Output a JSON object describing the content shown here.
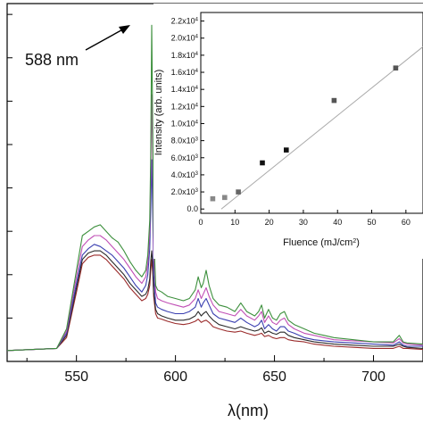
{
  "chart_data": [
    {
      "type": "line",
      "title": "",
      "xlabel": "λ(nm)",
      "ylabel": "",
      "xlim": [
        515,
        725
      ],
      "ylim": [
        0,
        16.5
      ],
      "x_ticks": [
        550,
        600,
        650,
        700
      ],
      "grid": false,
      "legend": "none",
      "annotations": [
        {
          "text": "588 nm",
          "x": 588,
          "y": 16.2
        }
      ],
      "x": [
        515,
        540,
        545,
        550,
        553,
        556,
        559,
        562,
        565,
        568,
        571,
        574,
        577,
        580,
        583,
        585,
        586,
        587,
        587.5,
        588,
        588.5,
        589,
        590,
        591,
        593,
        596,
        600,
        604,
        607,
        610,
        611.5,
        613,
        614,
        615.5,
        617,
        619,
        622,
        626,
        630,
        633,
        636,
        640,
        642,
        643.5,
        645,
        647,
        649,
        651,
        653,
        655,
        657,
        660,
        665,
        670,
        675,
        680,
        690,
        700,
        710,
        713,
        715,
        717,
        725
      ],
      "series": [
        {
          "name": "",
          "color": "#3c8f3c",
          "values": [
            0.5,
            0.6,
            1.5,
            4.2,
            5.8,
            6.0,
            6.2,
            6.3,
            6.0,
            5.7,
            5.5,
            5.1,
            4.6,
            4.2,
            3.9,
            4.2,
            4.9,
            6.5,
            9.5,
            15.5,
            11.0,
            6.0,
            3.5,
            3.3,
            3.2,
            3.0,
            2.9,
            2.8,
            2.9,
            3.3,
            3.9,
            3.4,
            3.6,
            4.2,
            3.5,
            2.9,
            2.6,
            2.5,
            2.3,
            2.7,
            2.3,
            2.1,
            2.3,
            2.6,
            2.0,
            2.4,
            2.0,
            1.9,
            2.2,
            2.3,
            1.9,
            1.7,
            1.5,
            1.3,
            1.2,
            1.1,
            1.0,
            0.9,
            0.9,
            1.2,
            0.9,
            0.85,
            0.8
          ]
        },
        {
          "name": "",
          "color": "#c04fb5",
          "values": [
            0.5,
            0.6,
            1.4,
            3.9,
            5.3,
            5.6,
            5.8,
            5.8,
            5.6,
            5.3,
            5.0,
            4.7,
            4.3,
            3.9,
            3.6,
            3.9,
            4.5,
            6.0,
            8.5,
            12.3,
            9.5,
            5.0,
            3.2,
            2.9,
            2.8,
            2.7,
            2.6,
            2.5,
            2.6,
            2.9,
            3.3,
            2.9,
            3.1,
            3.4,
            3.0,
            2.6,
            2.3,
            2.2,
            2.1,
            2.4,
            2.1,
            1.9,
            2.1,
            2.3,
            1.8,
            2.1,
            1.8,
            1.7,
            1.9,
            2.0,
            1.7,
            1.5,
            1.3,
            1.2,
            1.1,
            1.0,
            0.95,
            0.9,
            0.85,
            1.05,
            0.85,
            0.8,
            0.75
          ]
        },
        {
          "name": "",
          "color": "#3a3fb0",
          "values": [
            0.5,
            0.6,
            1.3,
            3.6,
            4.9,
            5.2,
            5.4,
            5.3,
            5.1,
            4.9,
            4.6,
            4.3,
            3.9,
            3.5,
            3.2,
            3.5,
            4.0,
            5.2,
            7.0,
            9.3,
            7.0,
            4.0,
            2.7,
            2.5,
            2.4,
            2.3,
            2.2,
            2.2,
            2.3,
            2.5,
            2.9,
            2.5,
            2.7,
            2.9,
            2.6,
            2.2,
            2.0,
            1.9,
            1.8,
            2.0,
            1.8,
            1.6,
            1.7,
            1.9,
            1.5,
            1.7,
            1.5,
            1.4,
            1.6,
            1.6,
            1.4,
            1.3,
            1.1,
            1.0,
            0.95,
            0.9,
            0.85,
            0.8,
            0.75,
            0.9,
            0.75,
            0.7,
            0.7
          ]
        },
        {
          "name": "",
          "color": "#2b2b2b",
          "values": [
            0.5,
            0.6,
            1.2,
            3.4,
            4.7,
            5.0,
            5.1,
            5.1,
            4.9,
            4.6,
            4.3,
            4.0,
            3.6,
            3.3,
            3.0,
            3.1,
            3.3,
            3.8,
            4.6,
            5.1,
            4.5,
            3.2,
            2.4,
            2.2,
            2.1,
            2.0,
            1.9,
            1.9,
            1.95,
            2.1,
            2.3,
            2.1,
            2.2,
            2.3,
            2.1,
            1.9,
            1.7,
            1.6,
            1.5,
            1.6,
            1.5,
            1.4,
            1.45,
            1.55,
            1.3,
            1.4,
            1.3,
            1.25,
            1.35,
            1.35,
            1.2,
            1.1,
            1.0,
            0.9,
            0.85,
            0.8,
            0.75,
            0.7,
            0.7,
            0.8,
            0.7,
            0.65,
            0.6
          ]
        },
        {
          "name": "",
          "color": "#9a2a2a",
          "values": [
            0.5,
            0.6,
            1.1,
            3.2,
            4.5,
            4.8,
            4.9,
            4.9,
            4.7,
            4.4,
            4.1,
            3.8,
            3.4,
            3.1,
            2.8,
            2.9,
            3.1,
            3.5,
            4.2,
            4.7,
            4.1,
            3.0,
            2.2,
            2.0,
            1.95,
            1.85,
            1.75,
            1.7,
            1.75,
            1.85,
            1.95,
            1.8,
            1.85,
            1.9,
            1.8,
            1.6,
            1.5,
            1.4,
            1.35,
            1.4,
            1.3,
            1.2,
            1.25,
            1.3,
            1.15,
            1.2,
            1.1,
            1.05,
            1.1,
            1.1,
            1.0,
            0.95,
            0.9,
            0.8,
            0.75,
            0.7,
            0.65,
            0.6,
            0.6,
            0.7,
            0.6,
            0.6,
            0.55
          ]
        }
      ]
    },
    {
      "type": "scatter",
      "title": "",
      "xlabel": "Fluence (mJ/cm",
      "xlabel_sup": "2",
      "xlabel_suffix": ")",
      "ylabel": "Intensity (arb. units)",
      "xlim": [
        0,
        65
      ],
      "ylim": [
        -500,
        23000
      ],
      "x_ticks": [
        0,
        10,
        20,
        30,
        40,
        50,
        60
      ],
      "y_ticks": [
        {
          "value": 0,
          "mantissa": "0.0",
          "exp": ""
        },
        {
          "value": 2000,
          "mantissa": "2.0x10",
          "exp": "3"
        },
        {
          "value": 4000,
          "mantissa": "4.0x10",
          "exp": "3"
        },
        {
          "value": 6000,
          "mantissa": "6.0x10",
          "exp": "3"
        },
        {
          "value": 8000,
          "mantissa": "8.0x10",
          "exp": "3"
        },
        {
          "value": 10000,
          "mantissa": "1.0x10",
          "exp": "4"
        },
        {
          "value": 12000,
          "mantissa": "1.2x10",
          "exp": "4"
        },
        {
          "value": 14000,
          "mantissa": "1.4x10",
          "exp": "4"
        },
        {
          "value": 16000,
          "mantissa": "1.6x10",
          "exp": "4"
        },
        {
          "value": 18000,
          "mantissa": "1.8x10",
          "exp": "4"
        },
        {
          "value": 20000,
          "mantissa": "2.0x10",
          "exp": "4"
        },
        {
          "value": 22000,
          "mantissa": "2.2x10",
          "exp": "4"
        }
      ],
      "points": [
        {
          "x": 3.5,
          "y": 1200,
          "color": "#888888"
        },
        {
          "x": 7,
          "y": 1350,
          "color": "#888888"
        },
        {
          "x": 11,
          "y": 2000,
          "color": "#666666"
        },
        {
          "x": 18,
          "y": 5400,
          "color": "#111111"
        },
        {
          "x": 25,
          "y": 6900,
          "color": "#111111"
        },
        {
          "x": 39,
          "y": 12700,
          "color": "#555555"
        },
        {
          "x": 57,
          "y": 16500,
          "color": "#555555"
        }
      ],
      "fit_line": {
        "x": [
          6,
          65
        ],
        "y": [
          0,
          19000
        ],
        "color": "#aaaaaa"
      },
      "grid": false,
      "legend": "none"
    }
  ]
}
